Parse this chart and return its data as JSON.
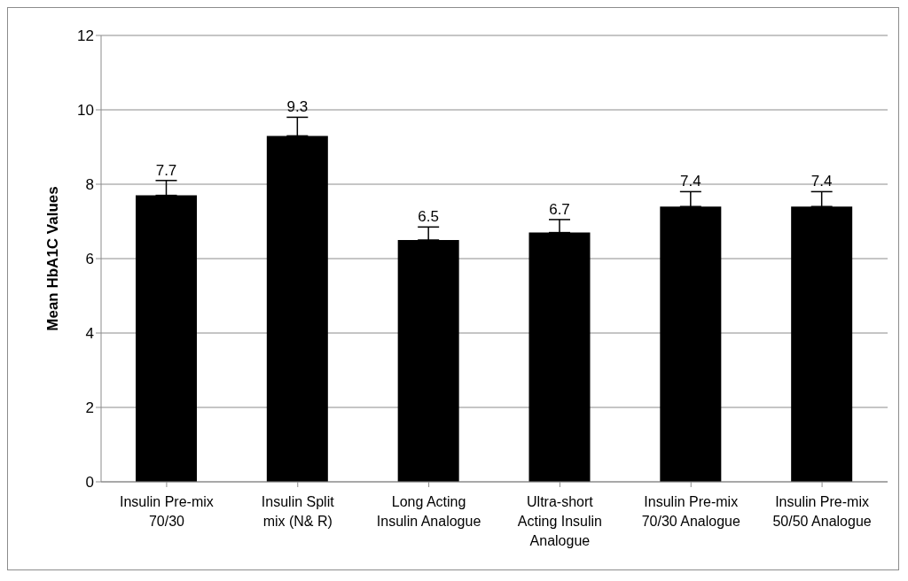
{
  "chart_data": {
    "type": "bar",
    "ylabel": "Mean HbA1C  Values",
    "categories": [
      "Insulin Pre-mix 70/30",
      "Insulin Split mix (N& R)",
      "Long Acting Insulin Analogue",
      "Ultra-short Acting Insulin Analogue",
      "Insulin Pre-mix 70/30 Analogue",
      "Insulin Pre-mix 50/50 Analogue"
    ],
    "values": [
      7.7,
      9.3,
      6.5,
      6.7,
      7.4,
      7.4
    ],
    "errors": [
      [
        7.7,
        8.1
      ],
      [
        9.3,
        9.8
      ],
      [
        6.5,
        6.85
      ],
      [
        6.7,
        7.05
      ],
      [
        7.4,
        7.8
      ],
      [
        7.4,
        7.8
      ]
    ],
    "color": "#000000",
    "ylim": [
      0,
      12
    ],
    "yticks": [
      0,
      2,
      4,
      6,
      8,
      10,
      12
    ],
    "grid": "y",
    "data_labels": true
  }
}
